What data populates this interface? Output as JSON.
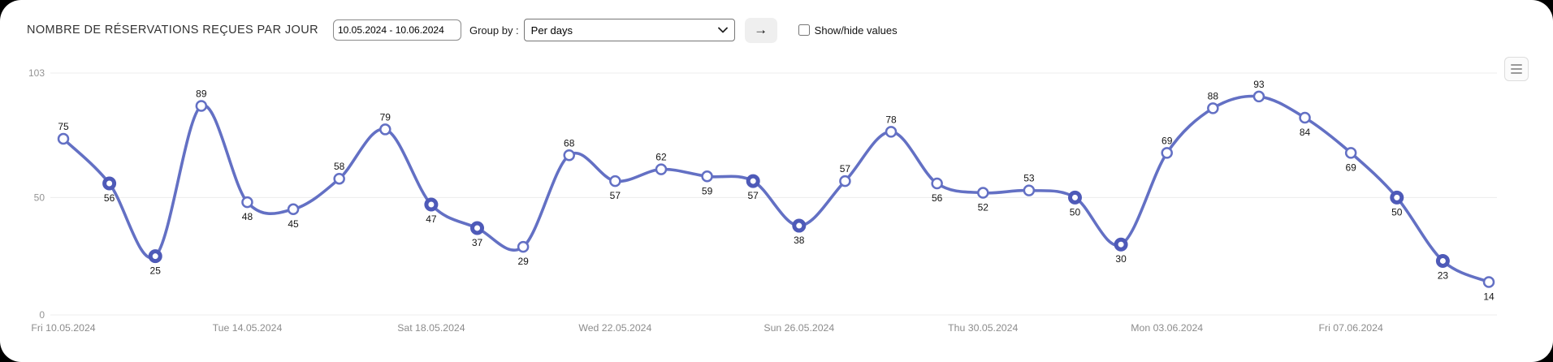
{
  "header": {
    "title": "NOMBRE DE RÉSERVATIONS REÇUES PAR JOUR",
    "date_range": {
      "value": "10.05.2024 - 10.06.2024"
    },
    "group_by": {
      "label": "Group by :",
      "selected": "Per days"
    },
    "submit": {
      "label": "→",
      "icon": "arrow-right-icon"
    },
    "show_hide": {
      "label": "Show/hide values",
      "checked": false
    },
    "menu": {
      "icon": "hamburger-menu-icon"
    }
  },
  "chart_data": {
    "type": "line",
    "title": "Nombre de réservations reçues par jour",
    "num_points": 32,
    "values": [
      75,
      56,
      25,
      89,
      48,
      45,
      58,
      79,
      47,
      37,
      29,
      68,
      57,
      62,
      59,
      57,
      38,
      57,
      78,
      56,
      52,
      53,
      50,
      30,
      69,
      88,
      93,
      84,
      69,
      50,
      23,
      14
    ],
    "value_label_side": [
      "above",
      "below",
      "below",
      "above",
      "below",
      "below",
      "above",
      "above",
      "below",
      "below",
      "below",
      "above",
      "below",
      "above",
      "below",
      "below",
      "below",
      "above",
      "above",
      "below",
      "below",
      "above",
      "below",
      "below",
      "above",
      "above",
      "above",
      "below",
      "below",
      "below",
      "below",
      "below"
    ],
    "weekend_bold_indices": [
      1,
      2,
      8,
      9,
      15,
      16,
      22,
      23,
      29,
      30
    ],
    "x_ticks": [
      {
        "i": 0,
        "label": "Fri 10.05.2024"
      },
      {
        "i": 4,
        "label": "Tue 14.05.2024"
      },
      {
        "i": 8,
        "label": "Sat 18.05.2024"
      },
      {
        "i": 12,
        "label": "Wed 22.05.2024"
      },
      {
        "i": 16,
        "label": "Sun 26.05.2024"
      },
      {
        "i": 20,
        "label": "Thu 30.05.2024"
      },
      {
        "i": 24,
        "label": "Mon 03.06.2024"
      },
      {
        "i": 28,
        "label": "Fri 07.06.2024"
      }
    ],
    "y_ticks": [
      0,
      50,
      103
    ],
    "ylim": [
      0,
      103
    ],
    "grid": true,
    "legend_position": "none",
    "colors": {
      "line": "#6370c4",
      "point_fill": "#ffffff",
      "point_stroke": "#6370c4",
      "weekend_point_stroke": "#4e5ab8",
      "grid": "#ececec",
      "axis_text": "#949494",
      "value_text": "#141414"
    }
  }
}
